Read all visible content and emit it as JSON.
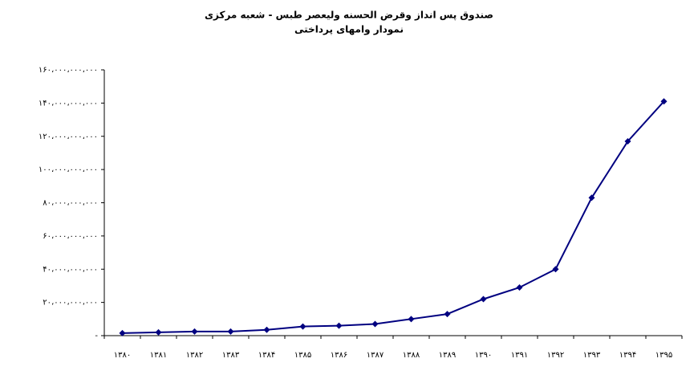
{
  "chart_data": {
    "type": "line",
    "title": "صندوق پس انداز وقرض الحسنه ولیعصر طبس - شعبه مرکزی",
    "subtitle": "نمودار وامهای  پرداختی",
    "categories": [
      "۱۳۸۰",
      "۱۳۸۱",
      "۱۳۸۲",
      "۱۳۸۳",
      "۱۳۸۴",
      "۱۳۸۵",
      "۱۳۸۶",
      "۱۳۸۷",
      "۱۳۸۸",
      "۱۳۸۹",
      "۱۳۹۰",
      "۱۳۹۱",
      "۱۳۹۲",
      "۱۳۹۳",
      "۱۳۹۴",
      "۱۳۹۵"
    ],
    "series": [
      {
        "color": "#000080",
        "values": [
          1500000000,
          2000000000,
          2500000000,
          2500000000,
          3500000000,
          5500000000,
          6000000000,
          7000000000,
          10000000000,
          13000000000,
          22000000000,
          29000000000,
          40000000000,
          83000000000,
          117000000000,
          141000000000
        ]
      }
    ],
    "ylim": [
      0,
      160000000000
    ],
    "yticks": [
      {
        "value": 0,
        "label": "-"
      },
      {
        "value": 20000000000,
        "label": "۲۰،۰۰۰،۰۰۰،۰۰۰"
      },
      {
        "value": 40000000000,
        "label": "۴۰،۰۰۰،۰۰۰،۰۰۰"
      },
      {
        "value": 60000000000,
        "label": "۶۰،۰۰۰،۰۰۰،۰۰۰"
      },
      {
        "value": 80000000000,
        "label": "۸۰،۰۰۰،۰۰۰،۰۰۰"
      },
      {
        "value": 100000000000,
        "label": "۱۰۰،۰۰۰،۰۰۰،۰۰۰"
      },
      {
        "value": 120000000000,
        "label": "۱۲۰،۰۰۰،۰۰۰،۰۰۰"
      },
      {
        "value": 140000000000,
        "label": "۱۴۰،۰۰۰،۰۰۰،۰۰۰"
      },
      {
        "value": 160000000000,
        "label": "۱۶۰،۰۰۰،۰۰۰،۰۰۰"
      }
    ],
    "grid": false
  }
}
